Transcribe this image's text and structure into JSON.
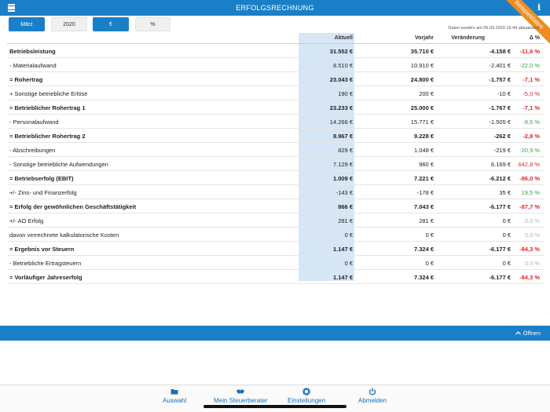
{
  "header": {
    "title": "ERFOLGSRECHNUNG",
    "corner_banner": "Beispieldaten"
  },
  "filters": {
    "month": "März",
    "year": "2020",
    "currency": "€",
    "percent": "%"
  },
  "updated_text": "Daten wurden am 05.03.2020 15:44 aktualisiert",
  "table": {
    "columns": {
      "aktuell": "Aktuell",
      "vorjahr": "Vorjahr",
      "veraenderung": "Veränderung",
      "delta": "Δ %"
    },
    "rows": [
      {
        "label": "Betriebsleistung",
        "aktuell": "31.552 €",
        "vorjahr": "35.710 €",
        "veraenderung": "-4.158 €",
        "delta": "-11,6 %",
        "bold": true,
        "delta_color": "red"
      },
      {
        "label": "- Materialaufwand",
        "aktuell": "8.510 €",
        "vorjahr": "10.910 €",
        "veraenderung": "-2.401 €",
        "delta": "-22,0 %",
        "bold": false,
        "delta_color": "green"
      },
      {
        "label": "= Rohertrag",
        "aktuell": "23.043 €",
        "vorjahr": "24.800 €",
        "veraenderung": "-1.757 €",
        "delta": "-7,1 %",
        "bold": true,
        "delta_color": "red"
      },
      {
        "label": "+ Sonstige betriebliche Erlöse",
        "aktuell": "190 €",
        "vorjahr": "200 €",
        "veraenderung": "-10 €",
        "delta": "-5,0 %",
        "bold": false,
        "delta_color": "red"
      },
      {
        "label": "= Betrieblicher Rohertrag 1",
        "aktuell": "23.233 €",
        "vorjahr": "25.000 €",
        "veraenderung": "-1.767 €",
        "delta": "-7,1 %",
        "bold": true,
        "delta_color": "red"
      },
      {
        "label": "- Personalaufwand",
        "aktuell": "14.266 €",
        "vorjahr": "15.771 €",
        "veraenderung": "-1.505 €",
        "delta": "-9,5 %",
        "bold": false,
        "delta_color": "green"
      },
      {
        "label": "= Betrieblicher Rohertrag 2",
        "aktuell": "8.967 €",
        "vorjahr": "9.228 €",
        "veraenderung": "-262 €",
        "delta": "-2,8 %",
        "bold": true,
        "delta_color": "red"
      },
      {
        "label": "- Abschreibungen",
        "aktuell": "829 €",
        "vorjahr": "1.048 €",
        "veraenderung": "-219 €",
        "delta": "-20,9 %",
        "bold": false,
        "delta_color": "green"
      },
      {
        "label": "- Sonstige betriebliche Aufwendungen",
        "aktuell": "7.129 €",
        "vorjahr": "960 €",
        "veraenderung": "6.169 €",
        "delta": "642,8 %",
        "bold": false,
        "delta_color": "red"
      },
      {
        "label": "= Betriebserfolg (EBIT)",
        "aktuell": "1.009 €",
        "vorjahr": "7.221 €",
        "veraenderung": "-6.212 €",
        "delta": "-86,0 %",
        "bold": true,
        "delta_color": "red"
      },
      {
        "label": "+/- Zins- und Finanzerfolg",
        "aktuell": "-143 €",
        "vorjahr": "-178 €",
        "veraenderung": "35 €",
        "delta": "19,5 %",
        "bold": false,
        "delta_color": "green"
      },
      {
        "label": "= Erfolg der gewöhnlichen Geschäftstätigkeit",
        "aktuell": "866 €",
        "vorjahr": "7.043 €",
        "veraenderung": "-6.177 €",
        "delta": "-87,7 %",
        "bold": true,
        "delta_color": "red"
      },
      {
        "label": "+/- AO Erfolg",
        "aktuell": "281 €",
        "vorjahr": "281 €",
        "veraenderung": "0 €",
        "delta": "0,0 %",
        "bold": false,
        "delta_color": "gray"
      },
      {
        "label": "davon verrechnete kalkulatorische Kosten",
        "aktuell": "0 €",
        "vorjahr": "0 €",
        "veraenderung": "0 €",
        "delta": "0,0 %",
        "bold": false,
        "delta_color": "gray"
      },
      {
        "label": "= Ergebnis vor Steuern",
        "aktuell": "1.147 €",
        "vorjahr": "7.324 €",
        "veraenderung": "-6.177 €",
        "delta": "-84,3 %",
        "bold": true,
        "delta_color": "red"
      },
      {
        "label": "- Betriebliche Ertragsteuern",
        "aktuell": "0 €",
        "vorjahr": "0 €",
        "veraenderung": "0 €",
        "delta": "0,0 %",
        "bold": false,
        "delta_color": "gray"
      },
      {
        "label": "= Vorläufiger Jahreserfolg",
        "aktuell": "1.147 €",
        "vorjahr": "7.324 €",
        "veraenderung": "-6.177 €",
        "delta": "-84,3 %",
        "bold": true,
        "delta_color": "red"
      }
    ]
  },
  "expander": {
    "label": "Öffnen",
    "icon": "chevron-up-icon"
  },
  "nav": [
    {
      "label": "Auswahl",
      "icon": "folder-icon"
    },
    {
      "label": "Mein Steuerberater",
      "icon": "handshake-icon"
    },
    {
      "label": "Einstellungen",
      "icon": "gear-icon"
    },
    {
      "label": "Abmelden",
      "icon": "power-icon"
    }
  ],
  "colors": {
    "primary": "#1a7fc7",
    "banner": "#ef8c1f",
    "negative": "#e0262b",
    "positive": "#2faa44",
    "neutral": "#b5b5b5",
    "actual_column": "#d6e6f5"
  }
}
